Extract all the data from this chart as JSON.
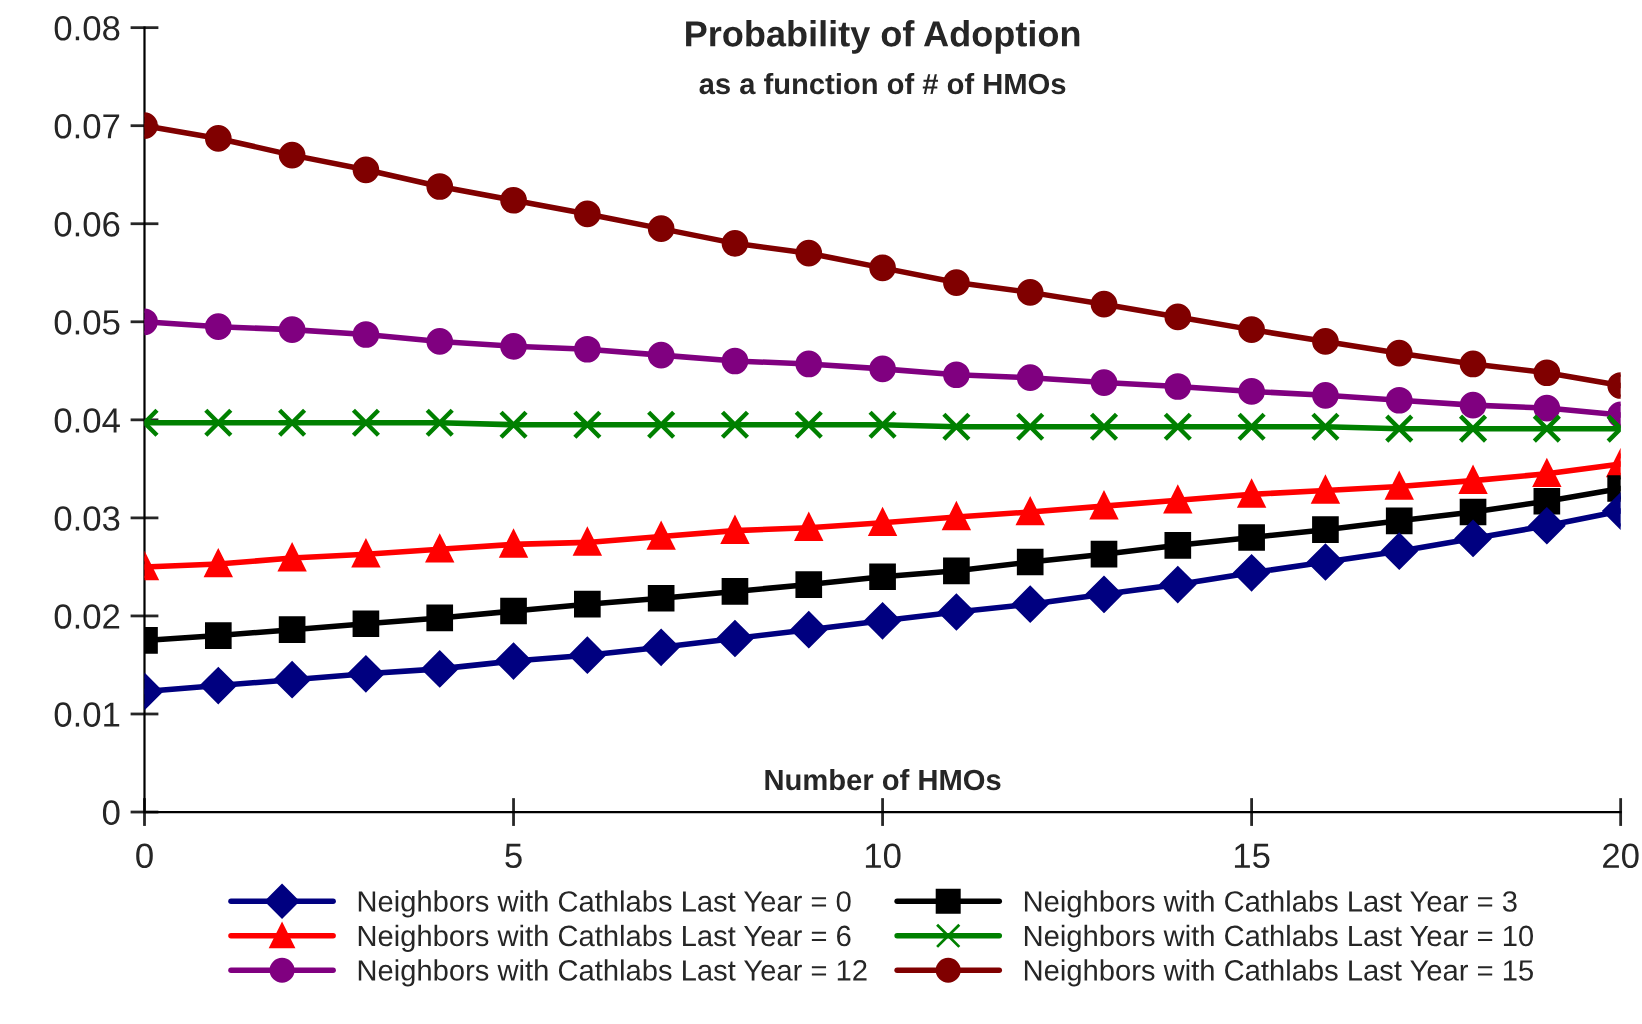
{
  "chart_data": {
    "type": "line",
    "title": "Probability of Adoption",
    "subtitle": "as a function of # of HMOs",
    "xlabel": "Number of HMOs",
    "x": [
      0,
      1,
      2,
      3,
      4,
      5,
      6,
      7,
      8,
      9,
      10,
      11,
      12,
      13,
      14,
      15,
      16,
      17,
      18,
      19,
      20
    ],
    "series": [
      {
        "name": "Neighbors with Cathlabs Last Year = 0",
        "color": "#000080",
        "marker": "diamond",
        "values": [
          0.0123,
          0.0129,
          0.0135,
          0.0141,
          0.0146,
          0.0154,
          0.016,
          0.0168,
          0.0177,
          0.0186,
          0.0195,
          0.0204,
          0.0212,
          0.0222,
          0.0232,
          0.0244,
          0.0255,
          0.0266,
          0.0279,
          0.0292,
          0.0307
        ]
      },
      {
        "name": "Neighbors with Cathlabs Last Year = 3",
        "color": "#000000",
        "marker": "square",
        "values": [
          0.0175,
          0.018,
          0.0186,
          0.0192,
          0.0198,
          0.0205,
          0.0212,
          0.0218,
          0.0225,
          0.0232,
          0.024,
          0.0246,
          0.0255,
          0.0263,
          0.0272,
          0.028,
          0.0288,
          0.0297,
          0.0306,
          0.0317,
          0.033
        ]
      },
      {
        "name": "Neighbors with Cathlabs Last Year = 6",
        "color": "#ff0000",
        "marker": "triangle",
        "values": [
          0.025,
          0.0253,
          0.0259,
          0.0263,
          0.0268,
          0.0273,
          0.0275,
          0.0281,
          0.0287,
          0.029,
          0.0295,
          0.0301,
          0.0306,
          0.0312,
          0.0318,
          0.0324,
          0.0328,
          0.0332,
          0.0338,
          0.0345,
          0.0355
        ]
      },
      {
        "name": "Neighbors with Cathlabs Last Year = 10",
        "color": "#008000",
        "marker": "cross",
        "values": [
          0.0397,
          0.0397,
          0.0397,
          0.0397,
          0.0397,
          0.0395,
          0.0395,
          0.0395,
          0.0395,
          0.0395,
          0.0395,
          0.0393,
          0.0393,
          0.0393,
          0.0393,
          0.0393,
          0.0393,
          0.0391,
          0.0391,
          0.0391,
          0.0391
        ]
      },
      {
        "name": "Neighbors with Cathlabs Last Year = 12",
        "color": "#800080",
        "marker": "circle",
        "values": [
          0.05,
          0.0495,
          0.0492,
          0.0487,
          0.048,
          0.0475,
          0.0472,
          0.0466,
          0.046,
          0.0457,
          0.0452,
          0.0446,
          0.0443,
          0.0438,
          0.0434,
          0.0429,
          0.0425,
          0.042,
          0.0415,
          0.0412,
          0.0405
        ]
      },
      {
        "name": "Neighbors with Cathlabs Last Year = 15",
        "color": "#800000",
        "marker": "circle",
        "values": [
          0.07,
          0.0687,
          0.067,
          0.0655,
          0.0638,
          0.0624,
          0.061,
          0.0595,
          0.058,
          0.057,
          0.0555,
          0.054,
          0.053,
          0.0518,
          0.0505,
          0.0492,
          0.048,
          0.0468,
          0.0457,
          0.0448,
          0.0435
        ]
      }
    ],
    "xlim": [
      0,
      20
    ],
    "ylim": [
      0,
      0.08
    ],
    "xticks": [
      0,
      5,
      10,
      15,
      20
    ],
    "yticks": [
      0,
      0.01,
      0.02,
      0.03,
      0.04,
      0.05,
      0.06,
      0.07,
      0.08
    ],
    "grid": false,
    "legend": "bottom",
    "line_style": "solid"
  }
}
